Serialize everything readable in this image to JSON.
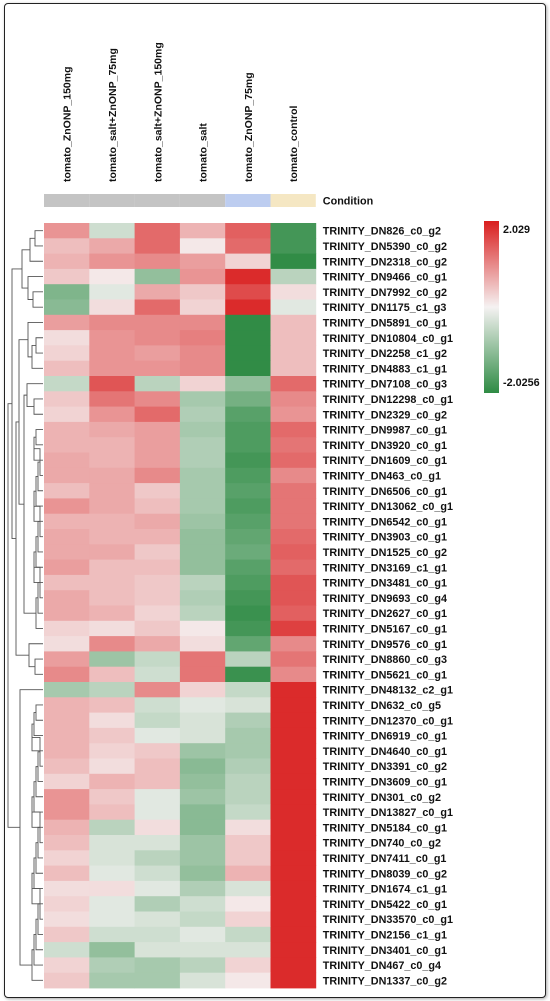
{
  "chart_data": {
    "type": "heatmap",
    "columns": [
      "tomato_ZnONP_150mg",
      "tomato_salt+ZnONP_75mg",
      "tomato_salt+ZnONP_150mg",
      "tomato_salt",
      "tomato_ZnONP_75mg",
      "tomato_control"
    ],
    "annotation": {
      "label": "Condition",
      "groups": [
        {
          "column": "tomato_ZnONP_150mg",
          "color": "#c4c4c4"
        },
        {
          "column": "tomato_salt+ZnONP_75mg",
          "color": "#c4c4c4"
        },
        {
          "column": "tomato_salt+ZnONP_150mg",
          "color": "#c4c4c4"
        },
        {
          "column": "tomato_salt",
          "color": "#c4c4c4"
        },
        {
          "column": "tomato_ZnONP_75mg",
          "color": "#bdcdf0"
        },
        {
          "column": "tomato_control",
          "color": "#f5e7c3"
        }
      ]
    },
    "rows": [
      "TRINITY_DN826_c0_g2",
      "TRINITY_DN5390_c0_g2",
      "TRINITY_DN2318_c0_g2",
      "TRINITY_DN9466_c0_g1",
      "TRINITY_DN7992_c0_g2",
      "TRINITY_DN1175_c1_g3",
      "TRINITY_DN5891_c0_g1",
      "TRINITY_DN10804_c0_g1",
      "TRINITY_DN2258_c1_g2",
      "TRINITY_DN4883_c1_g1",
      "TRINITY_DN7108_c0_g3",
      "TRINITY_DN12298_c0_g1",
      "TRINITY_DN2329_c0_g2",
      "TRINITY_DN9987_c0_g1",
      "TRINITY_DN3920_c0_g1",
      "TRINITY_DN1609_c0_g1",
      "TRINITY_DN463_c0_g1",
      "TRINITY_DN6506_c0_g1",
      "TRINITY_DN13062_c0_g1",
      "TRINITY_DN6542_c0_g1",
      "TRINITY_DN3903_c0_g1",
      "TRINITY_DN1525_c0_g2",
      "TRINITY_DN3169_c1_g1",
      "TRINITY_DN3481_c0_g1",
      "TRINITY_DN9693_c0_g4",
      "TRINITY_DN2627_c0_g1",
      "TRINITY_DN5167_c0_g1",
      "TRINITY_DN9576_c0_g1",
      "TRINITY_DN8860_c0_g3",
      "TRINITY_DN5621_c0_g1",
      "TRINITY_DN48132_c2_g1",
      "TRINITY_DN632_c0_g5",
      "TRINITY_DN12370_c0_g1",
      "TRINITY_DN6919_c0_g1",
      "TRINITY_DN4640_c0_g1",
      "TRINITY_DN3391_c0_g2",
      "TRINITY_DN3609_c0_g1",
      "TRINITY_DN301_c0_g2",
      "TRINITY_DN13827_c0_g1",
      "TRINITY_DN5184_c0_g1",
      "TRINITY_DN740_c0_g2",
      "TRINITY_DN7411_c0_g1",
      "TRINITY_DN8039_c0_g2",
      "TRINITY_DN1674_c1_g1",
      "TRINITY_DN5422_c0_g1",
      "TRINITY_DN33570_c0_g1",
      "TRINITY_DN2156_c1_g1",
      "TRINITY_DN3401_c0_g1",
      "TRINITY_DN467_c0_g4",
      "TRINITY_DN1337_c0_g2"
    ],
    "values": [
      [
        0.9,
        -0.4,
        1.3,
        0.6,
        1.4,
        -1.8
      ],
      [
        0.5,
        0.7,
        1.3,
        0.1,
        1.3,
        -1.8
      ],
      [
        0.6,
        0.9,
        1.0,
        0.8,
        0.3,
        -2.0
      ],
      [
        0.4,
        0.1,
        -1.0,
        0.9,
        1.9,
        -0.6
      ],
      [
        -1.2,
        -0.2,
        0.7,
        0.4,
        1.6,
        0.2
      ],
      [
        -1.1,
        0.2,
        1.3,
        0.3,
        1.9,
        -0.2
      ],
      [
        0.8,
        1.0,
        1.0,
        1.0,
        -2.0,
        0.5
      ],
      [
        0.2,
        0.9,
        1.0,
        1.1,
        -2.0,
        0.5
      ],
      [
        0.3,
        0.9,
        0.8,
        1.0,
        -2.0,
        0.5
      ],
      [
        0.5,
        0.9,
        0.9,
        1.0,
        -2.0,
        0.5
      ],
      [
        -0.5,
        1.5,
        -0.6,
        0.3,
        -1.0,
        1.3
      ],
      [
        0.4,
        1.2,
        1.0,
        -0.8,
        -1.3,
        1.0
      ],
      [
        0.3,
        0.9,
        1.3,
        -0.7,
        -1.6,
        0.9
      ],
      [
        0.6,
        0.7,
        0.8,
        -0.8,
        -1.7,
        1.3
      ],
      [
        0.6,
        0.6,
        0.8,
        -0.7,
        -1.7,
        1.2
      ],
      [
        0.7,
        0.6,
        0.8,
        -0.7,
        -1.8,
        1.3
      ],
      [
        0.7,
        0.7,
        1.0,
        -0.8,
        -1.7,
        1.0
      ],
      [
        0.5,
        0.7,
        0.4,
        -0.8,
        -1.6,
        1.2
      ],
      [
        0.9,
        0.7,
        0.5,
        -0.8,
        -1.7,
        1.2
      ],
      [
        0.6,
        0.6,
        0.7,
        -0.9,
        -1.6,
        1.2
      ],
      [
        0.7,
        0.6,
        0.6,
        -1.0,
        -1.5,
        1.3
      ],
      [
        0.7,
        0.7,
        0.4,
        -1.0,
        -1.4,
        1.4
      ],
      [
        0.8,
        0.5,
        0.5,
        -1.0,
        -1.6,
        1.3
      ],
      [
        0.5,
        0.5,
        0.4,
        -0.6,
        -1.7,
        1.5
      ],
      [
        0.7,
        0.5,
        0.4,
        -0.7,
        -1.8,
        1.5
      ],
      [
        0.7,
        0.6,
        0.3,
        -0.6,
        -1.9,
        1.4
      ],
      [
        0.3,
        0.2,
        0.4,
        0.1,
        -1.8,
        1.7
      ],
      [
        0.2,
        1.0,
        0.7,
        0.2,
        -1.5,
        1.0
      ],
      [
        0.8,
        -0.9,
        -0.5,
        1.2,
        -0.6,
        1.2
      ],
      [
        1.0,
        0.5,
        -0.4,
        1.2,
        -1.9,
        1.0
      ],
      [
        -0.8,
        -0.6,
        1.0,
        0.3,
        -0.5,
        1.9
      ],
      [
        0.6,
        0.5,
        -0.4,
        -0.2,
        -0.3,
        1.9
      ],
      [
        0.6,
        0.2,
        -0.5,
        -0.3,
        -0.7,
        1.9
      ],
      [
        0.6,
        0.4,
        -0.2,
        -0.3,
        -0.8,
        1.9
      ],
      [
        0.6,
        0.3,
        0.4,
        -0.9,
        -0.8,
        1.9
      ],
      [
        0.5,
        0.2,
        0.5,
        -1.1,
        -0.7,
        1.9
      ],
      [
        0.3,
        0.6,
        0.5,
        -1.0,
        -0.6,
        1.9
      ],
      [
        0.9,
        0.4,
        -0.2,
        -0.9,
        -0.6,
        1.9
      ],
      [
        0.9,
        0.5,
        -0.2,
        -1.1,
        -0.5,
        1.9
      ],
      [
        0.6,
        -0.6,
        0.2,
        -1.1,
        0.2,
        1.9
      ],
      [
        0.5,
        -0.3,
        -0.3,
        -0.9,
        0.4,
        1.9
      ],
      [
        0.3,
        -0.3,
        -0.6,
        -0.9,
        0.4,
        1.9
      ],
      [
        0.5,
        -0.2,
        -0.4,
        -1.0,
        0.6,
        1.9
      ],
      [
        0.2,
        0.2,
        -0.2,
        -0.7,
        -0.3,
        1.9
      ],
      [
        0.3,
        -0.2,
        -0.7,
        -0.4,
        0.1,
        1.9
      ],
      [
        0.2,
        -0.2,
        -0.3,
        -0.5,
        0.3,
        1.9
      ],
      [
        0.4,
        -0.4,
        -0.4,
        -0.2,
        -0.5,
        1.9
      ],
      [
        -0.4,
        -1.0,
        -0.3,
        -0.3,
        -0.3,
        1.9
      ],
      [
        0.3,
        -0.7,
        -0.8,
        -0.6,
        0.3,
        1.9
      ],
      [
        0.4,
        -0.8,
        -0.8,
        -0.3,
        0.1,
        1.9
      ]
    ],
    "scale": {
      "min": -2.0256,
      "max": 2.029,
      "min_label": "-2.0256",
      "max_label": "2.029",
      "colors": {
        "low": "#2e8b44",
        "mid": "#f5f2f2",
        "high": "#d91e1e"
      }
    },
    "dendrogram": "rows clustered (hierarchical), shown on the left",
    "grid": false,
    "legend": "right"
  }
}
